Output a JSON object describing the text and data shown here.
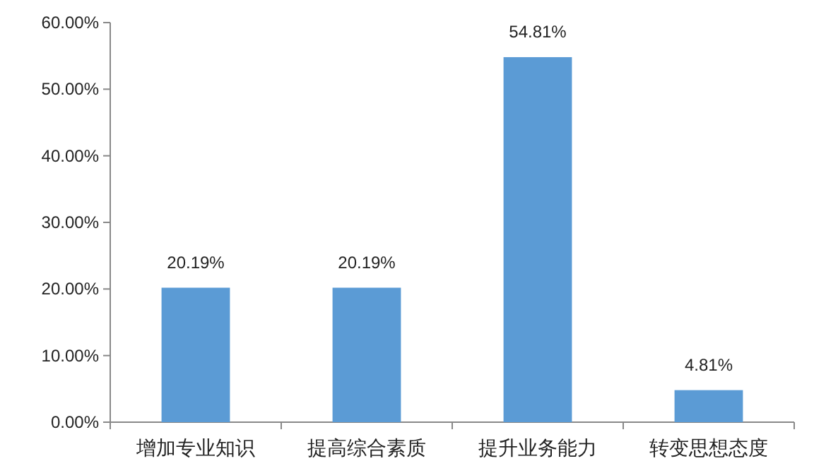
{
  "chart_data": {
    "type": "bar",
    "categories": [
      "增加专业知识",
      "提高综合素质",
      "提升业务能力",
      "转变思想态度"
    ],
    "values": [
      20.19,
      20.19,
      54.81,
      4.81
    ],
    "color": "#5b9bd5",
    "value_labels": [
      "20.19%",
      "20.19%",
      "54.81%",
      "4.81%"
    ],
    "ylim": [
      0,
      60
    ],
    "yticks": [
      {
        "value": 0,
        "label": "0.00%"
      },
      {
        "value": 10,
        "label": "10.00%"
      },
      {
        "value": 20,
        "label": "20.00%"
      },
      {
        "value": 30,
        "label": "30.00%"
      },
      {
        "value": 40,
        "label": "40.00%"
      },
      {
        "value": 50,
        "label": "50.00%"
      },
      {
        "value": 60,
        "label": "60.00%"
      }
    ]
  }
}
